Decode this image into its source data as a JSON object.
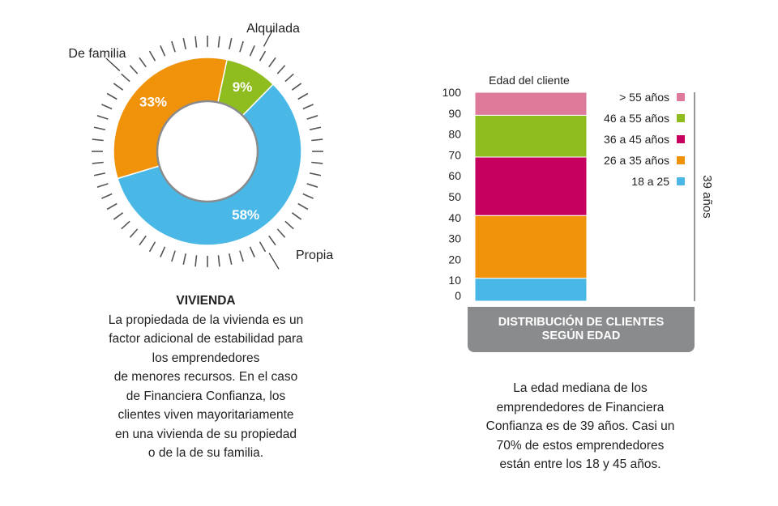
{
  "chart_data": [
    {
      "type": "pie",
      "variant": "donut",
      "title": "VIVIENDA",
      "slices": [
        {
          "name": "Alquilada",
          "value": 9,
          "label": "9%",
          "color": "#8fbc1e"
        },
        {
          "name": "Propia",
          "value": 58,
          "label": "58%",
          "color": "#4ab8e6"
        },
        {
          "name": "De familia",
          "value": 33,
          "label": "33%",
          "color": "#f0920a"
        }
      ]
    },
    {
      "type": "bar",
      "variant": "stacked-100",
      "title": "DISTRIBUCIÓN DE CLIENTES SEGÚN EDAD",
      "title_lines": [
        "DISTRIBUCIÓN DE CLIENTES",
        "SEGÚN EDAD"
      ],
      "xlabel": "Edad del cliente",
      "ylim": [
        0,
        100
      ],
      "yticks": [
        0,
        10,
        20,
        30,
        40,
        50,
        60,
        70,
        80,
        90,
        100
      ],
      "legend_position": "right",
      "series": [
        {
          "name": "18 a 25",
          "value": 11,
          "color": "#4ab8e6"
        },
        {
          "name": "26 a 35 años",
          "value": 30,
          "color": "#f0920a"
        },
        {
          "name": "36 a 45 años",
          "value": 28,
          "color": "#c5005e"
        },
        {
          "name": "46 a 55 años",
          "value": 20,
          "color": "#8fbc1e"
        },
        {
          "name": "> 55 años",
          "value": 11,
          "color": "#de7b9b"
        }
      ],
      "annotation": "39 años"
    }
  ],
  "left_caption": {
    "heading": "VIVIENDA",
    "lines": [
      "La propiedada de la vivienda es un",
      "factor adicional de estabilidad para",
      "los emprendedores",
      "de menores recursos. En el caso",
      "de Financiera Confianza,  los",
      "clientes viven mayoritariamente",
      "en una vivienda de su propiedad",
      "o de la de su familia."
    ]
  },
  "right_caption": {
    "lines": [
      "La edad mediana de los",
      "emprendedores de Financiera",
      "Confianza es de 39 años. Casi un",
      "70% de estos emprendedores",
      "están entre los 18 y 45 años."
    ]
  },
  "colors": {
    "banner": "#8a8b8d",
    "ticks": "#555555"
  }
}
